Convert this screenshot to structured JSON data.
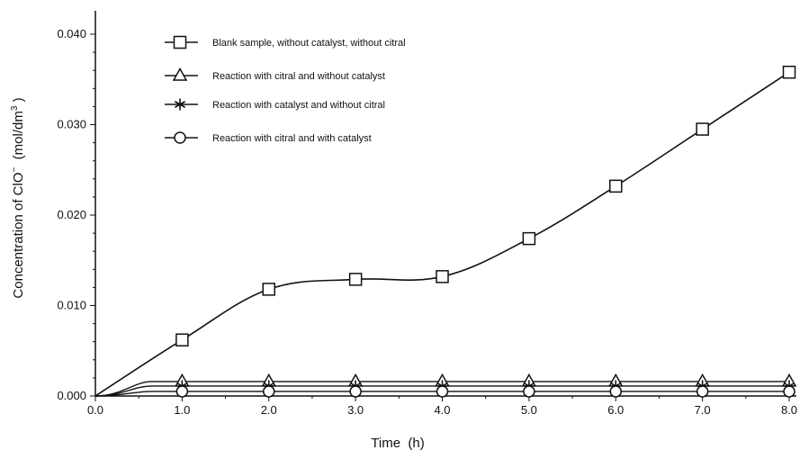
{
  "chart_data": {
    "type": "line",
    "title": "",
    "xlabel": "Time  (h)",
    "ylabel": "Concentration of ClO",
    "ylabel_superscript": "−",
    "ylabel_unit": "  (mol/dm",
    "ylabel_unit_superscript": "3",
    "ylabel_unit_close": " )",
    "xlim": [
      0,
      8
    ],
    "ylim": [
      0,
      0.042
    ],
    "xticks": [
      "0.0",
      "1.0",
      "2.0",
      "3.0",
      "4.0",
      "5.0",
      "6.0",
      "7.0",
      "8.0"
    ],
    "yticks": [
      "0.000",
      "0.010",
      "0.020",
      "0.030",
      "0.040"
    ],
    "grid": false,
    "legend_position": "top-left",
    "series": [
      {
        "name": "Blank sample, without catalyst, without citral",
        "marker": "square",
        "x": [
          0,
          1,
          2,
          3,
          4,
          5,
          6,
          7,
          8
        ],
        "y": [
          0.0,
          0.0062,
          0.0118,
          0.0129,
          0.0132,
          0.0174,
          0.0232,
          0.0295,
          0.0358
        ]
      },
      {
        "name": "Reaction with citral and without catalyst",
        "marker": "triangle",
        "x": [
          0,
          1,
          2,
          3,
          4,
          5,
          6,
          7,
          8
        ],
        "y": [
          0.0,
          0.0016,
          0.0016,
          0.0016,
          0.0016,
          0.0016,
          0.0016,
          0.0016,
          0.0016
        ]
      },
      {
        "name": "Reaction with catalyst and without citral",
        "marker": "asterisk",
        "x": [
          0,
          1,
          2,
          3,
          4,
          5,
          6,
          7,
          8
        ],
        "y": [
          0.0,
          0.0011,
          0.0011,
          0.0011,
          0.0011,
          0.0011,
          0.0011,
          0.0011,
          0.0011
        ]
      },
      {
        "name": "Reaction with citral and with catalyst",
        "marker": "circle",
        "x": [
          0,
          1,
          2,
          3,
          4,
          5,
          6,
          7,
          8
        ],
        "y": [
          0.0,
          0.0005,
          0.0005,
          0.0005,
          0.0005,
          0.0005,
          0.0005,
          0.0005,
          0.0005
        ]
      }
    ]
  },
  "style": {
    "line_color": "#111111",
    "background": "#ffffff"
  }
}
